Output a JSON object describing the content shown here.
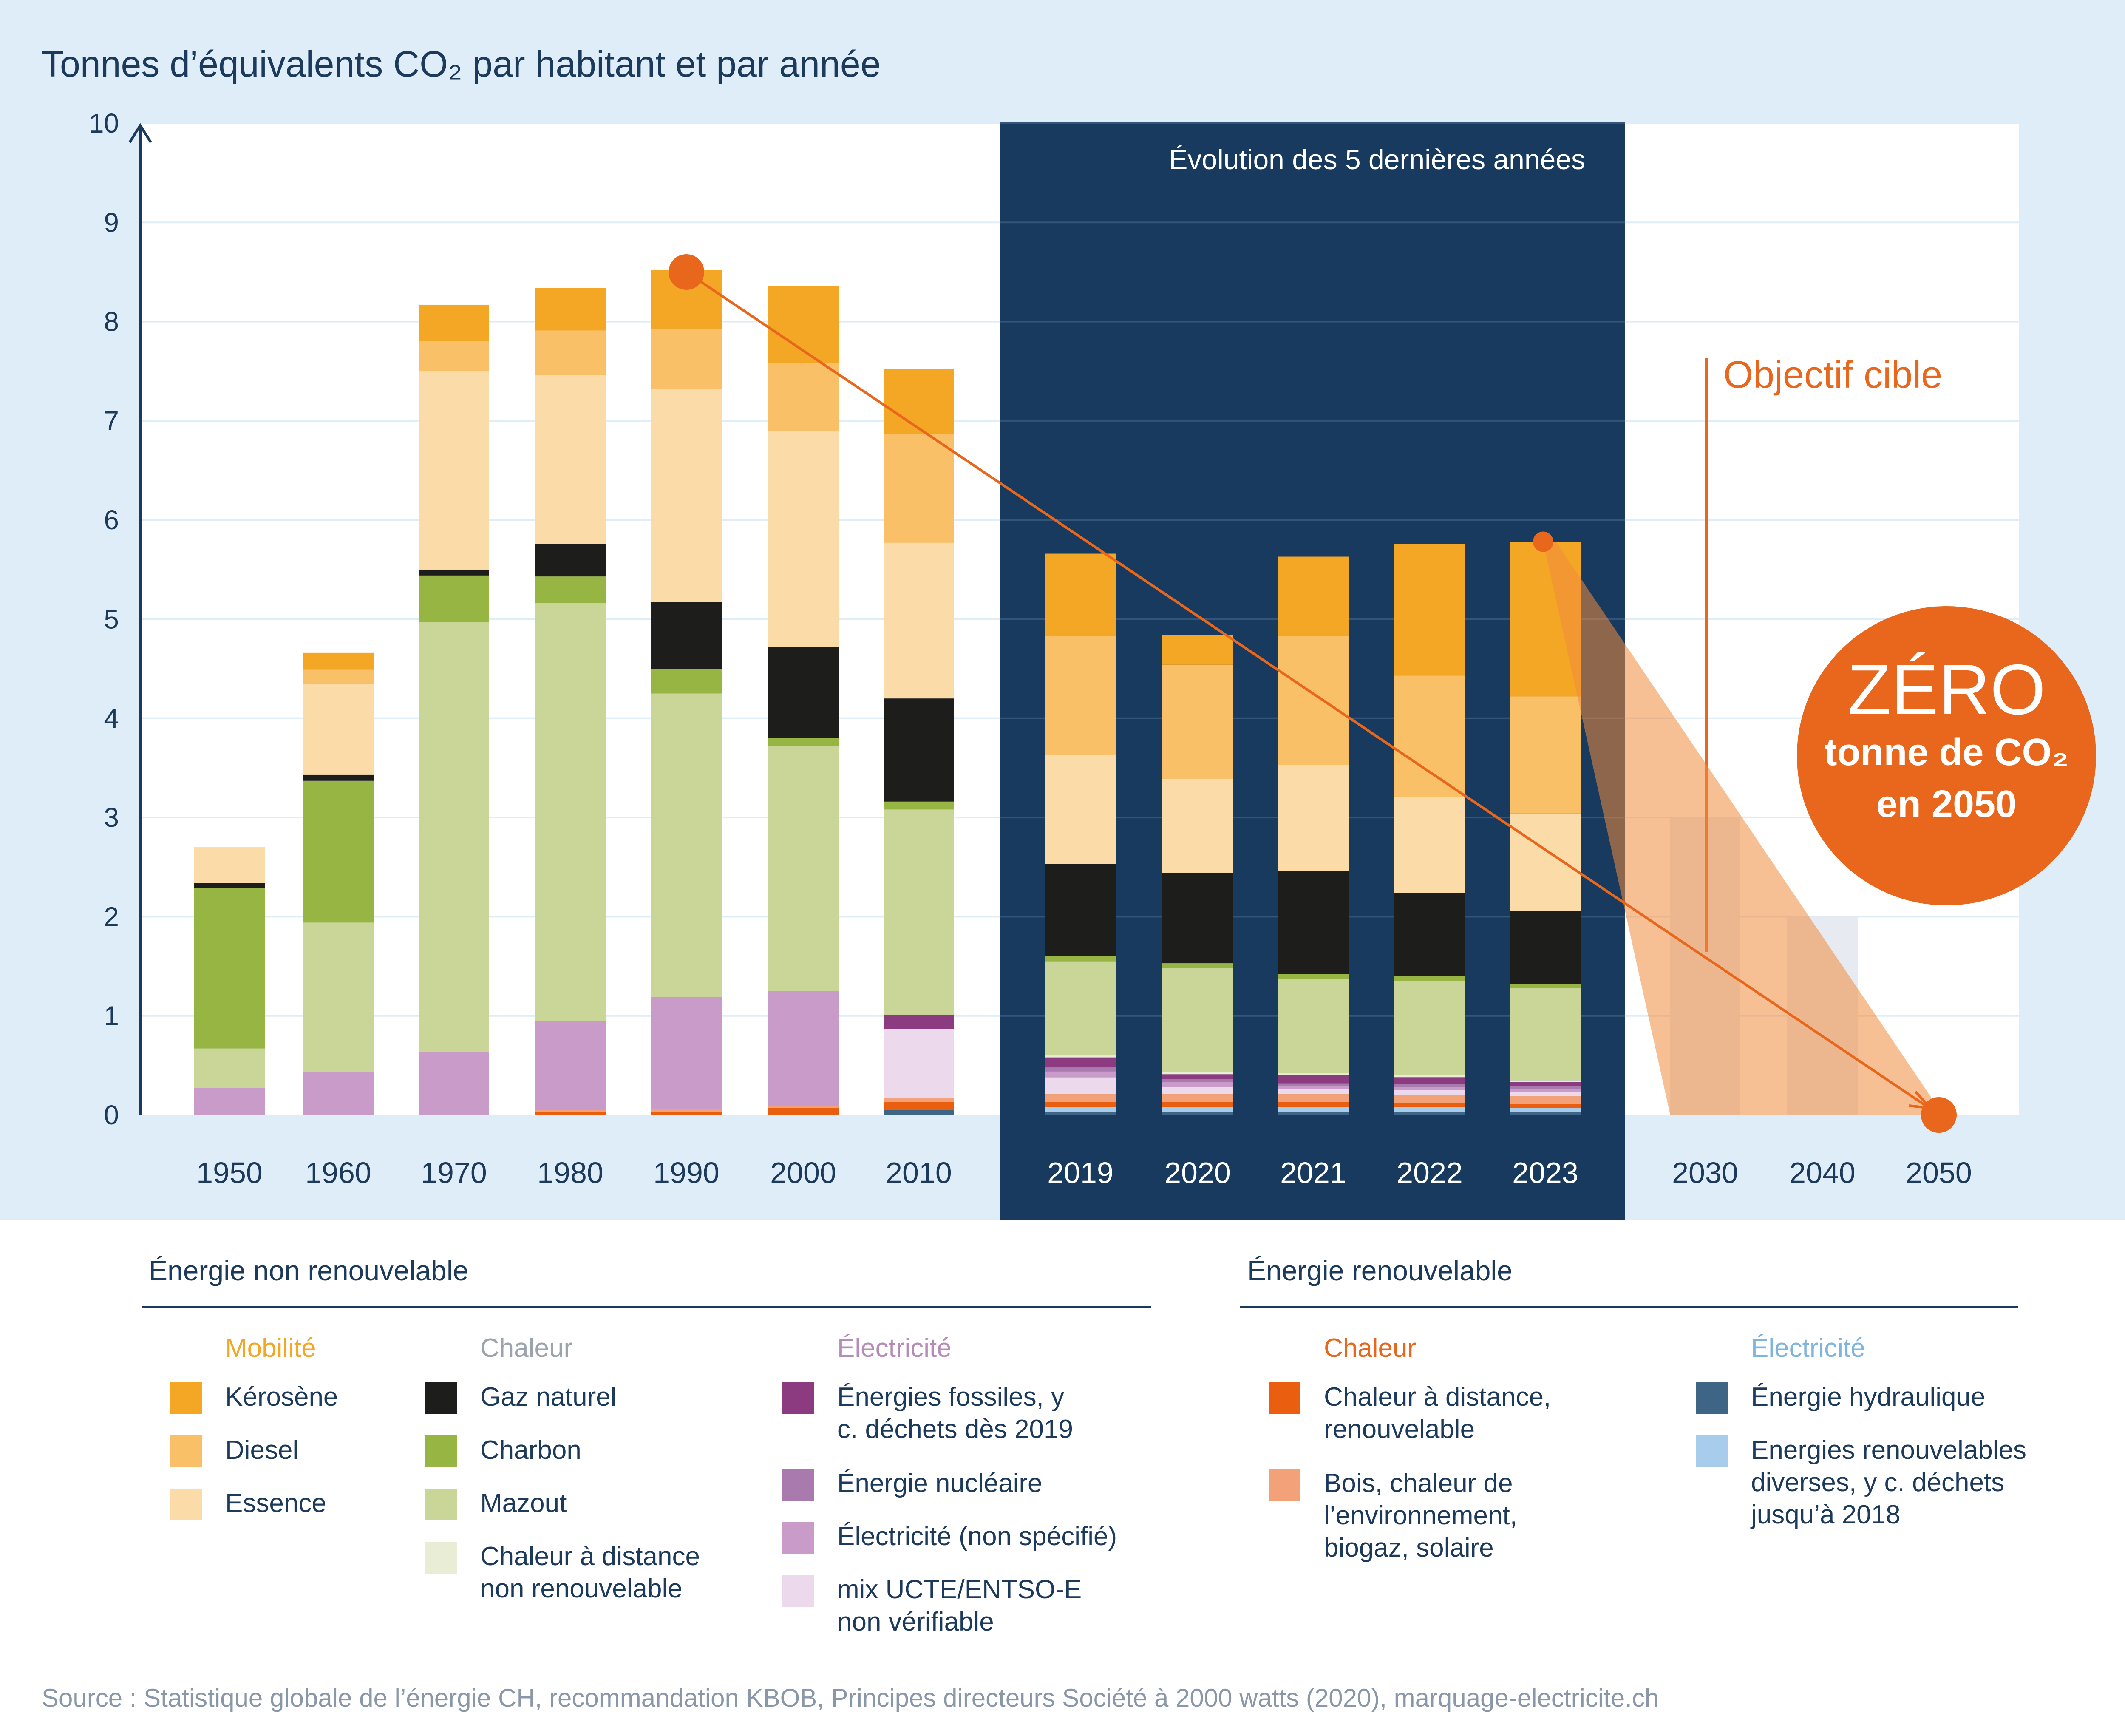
{
  "chart_data": {
    "type": "bar",
    "title": "Tonnes d’équivalents CO₂ par habitant et par année",
    "ylim": [
      0,
      10
    ],
    "y_ticks": [
      "0",
      "1",
      "2",
      "3",
      "4",
      "5",
      "6",
      "7",
      "8",
      "9",
      "10"
    ],
    "categories": [
      "1950",
      "1960",
      "1970",
      "1980",
      "1990",
      "2000",
      "2010",
      "2019",
      "2020",
      "2021",
      "2022",
      "2023"
    ],
    "series": [
      {
        "key": "hydro",
        "name": "Énergie hydraulique",
        "color": "#3e6585",
        "values": [
          0,
          0,
          0,
          0,
          0,
          0,
          0.05,
          0.03,
          0.03,
          0.03,
          0.03,
          0.03
        ]
      },
      {
        "key": "ren_divers",
        "name": "Energies renouvelables diverses, y c. déchets jusqu’à 2018",
        "color": "#a8cdec",
        "values": [
          0,
          0,
          0,
          0,
          0,
          0,
          0,
          0.05,
          0.05,
          0.05,
          0.05,
          0.04
        ]
      },
      {
        "key": "cad_ren",
        "name": "Chaleur à distance, renouvelable",
        "color": "#ea5f0f",
        "values": [
          0,
          0,
          0,
          0.03,
          0.03,
          0.07,
          0.08,
          0.05,
          0.05,
          0.05,
          0.04,
          0.04
        ]
      },
      {
        "key": "bois",
        "name": "Bois, chaleur de l’environnement, biogaz, solaire",
        "color": "#f2a178",
        "values": [
          0,
          0,
          0,
          0.02,
          0.03,
          0.02,
          0.04,
          0.08,
          0.08,
          0.08,
          0.08,
          0.08
        ]
      },
      {
        "key": "ucte",
        "name": "mix UCTE/ENTSO-E non vérifiable",
        "color": "#ecd9eb",
        "values": [
          0,
          0,
          0,
          0,
          0,
          0,
          0.7,
          0.17,
          0.07,
          0.05,
          0.05,
          0.04
        ]
      },
      {
        "key": "elec_ns",
        "name": "Électricité (non spécifié)",
        "color": "#c99bc9",
        "values": [
          0.27,
          0.43,
          0.64,
          0.9,
          1.13,
          1.16,
          0.0,
          0.06,
          0.05,
          0.03,
          0.03,
          0.03
        ]
      },
      {
        "key": "nucleaire",
        "name": "Énergie nucléaire",
        "color": "#a97aad",
        "values": [
          0,
          0,
          0,
          0,
          0,
          0,
          0,
          0.04,
          0.03,
          0.03,
          0.03,
          0.03
        ]
      },
      {
        "key": "fossiles",
        "name": "Énergies fossiles, y c. déchets dès 2019",
        "color": "#8c3b80",
        "values": [
          0,
          0,
          0,
          0,
          0,
          0,
          0.14,
          0.1,
          0.05,
          0.08,
          0.07,
          0.04
        ]
      },
      {
        "key": "cad_nr",
        "name": "Chaleur à distance non renouvelable",
        "color": "#e9edd6",
        "values": [
          0,
          0,
          0,
          0,
          0,
          0,
          0,
          0.02,
          0.02,
          0.02,
          0.02,
          0.02
        ]
      },
      {
        "key": "mazout",
        "name": "Mazout",
        "color": "#c9d698",
        "values": [
          0.4,
          1.51,
          4.33,
          4.21,
          3.06,
          2.47,
          2.07,
          0.95,
          1.05,
          0.95,
          0.95,
          0.93
        ]
      },
      {
        "key": "charbon",
        "name": "Charbon",
        "color": "#96b542",
        "values": [
          1.62,
          1.43,
          0.47,
          0.27,
          0.25,
          0.08,
          0.08,
          0.05,
          0.05,
          0.05,
          0.05,
          0.04
        ]
      },
      {
        "key": "gaz",
        "name": "Gaz naturel",
        "color": "#1d1d1b",
        "values": [
          0.05,
          0.06,
          0.06,
          0.33,
          0.67,
          0.92,
          1.04,
          0.93,
          0.91,
          1.04,
          0.84,
          0.74
        ]
      },
      {
        "key": "essence",
        "name": "Essence",
        "color": "#fbdba8",
        "values": [
          0.36,
          0.92,
          2.0,
          1.7,
          2.15,
          2.18,
          1.57,
          1.1,
          0.95,
          1.07,
          0.97,
          0.98
        ]
      },
      {
        "key": "diesel",
        "name": "Diesel",
        "color": "#f9c068",
        "values": [
          0,
          0.14,
          0.3,
          0.45,
          0.6,
          0.68,
          1.1,
          1.2,
          1.15,
          1.3,
          1.22,
          1.18
        ]
      },
      {
        "key": "kerosene",
        "name": "Kérosène",
        "color": "#f4a625",
        "values": [
          0,
          0.17,
          0.37,
          0.43,
          0.6,
          0.78,
          0.65,
          0.83,
          0.3,
          0.8,
          1.33,
          1.56
        ]
      }
    ],
    "future": {
      "categories": [
        "2030",
        "2040",
        "2050"
      ],
      "target_bars": [
        3,
        2,
        0
      ]
    },
    "trend_line": {
      "from_category": "1990",
      "from_value": 8.5,
      "to_category": "2050",
      "to_value": 0
    }
  },
  "labels": {
    "panel": "Évolution des 5 dernières années",
    "target": "Objectif cible",
    "zero_big": "ZÉRO",
    "zero_line1": "tonne de CO₂",
    "zero_line2": "en 2050"
  },
  "legend": {
    "non_ren_title": "Énergie non renouvelable",
    "ren_title": "Énergie renouvelable",
    "mobilite": "Mobilité",
    "chaleur": "Chaleur",
    "electricite": "Électricité",
    "kerosene": "Kérosène",
    "diesel": "Diesel",
    "essence": "Essence",
    "gaz": "Gaz naturel",
    "charbon": "Charbon",
    "mazout": "Mazout",
    "cad_nr_1": "Chaleur à distance",
    "cad_nr_2": "non renouvelable",
    "fossiles_1": "Énergies fossiles, y",
    "fossiles_2": "c. déchets dès 2019",
    "nucleaire": "Énergie nucléaire",
    "elec_ns": "Électricité (non spécifié)",
    "ucte_1": "mix UCTE/ENTSO-E",
    "ucte_2": "non vérifiable",
    "chaleur_ren": "Chaleur",
    "electricite_ren": "Électricité",
    "cad_ren_1": "Chaleur à distance,",
    "cad_ren_2": "renouvelable",
    "bois_1": "Bois, chaleur de",
    "bois_2": "l’environnement,",
    "bois_3": "biogaz, solaire",
    "hydro": "Énergie hydraulique",
    "ren_divers_1": "Energies renouvelables",
    "ren_divers_2": "diverses, y c. déchets",
    "ren_divers_3": "jusqu’à 2018"
  },
  "colors": {
    "background_panel": "#deedf8",
    "dark_panel": "#173a5e",
    "accent_orange": "#e8671d",
    "text_navy": "#1c3a5c",
    "mobilite": "#f4a625",
    "chaleur_nr": "#9aa3ae",
    "electricite_nr": "#b58bb8",
    "chaleur_ren": "#e8671d",
    "electricite_ren": "#7fb4de"
  },
  "source": "Source : Statistique globale de l’énergie CH, recommandation KBOB, Principes directeurs Société à 2000 watts (2020), marquage-electricite.ch"
}
